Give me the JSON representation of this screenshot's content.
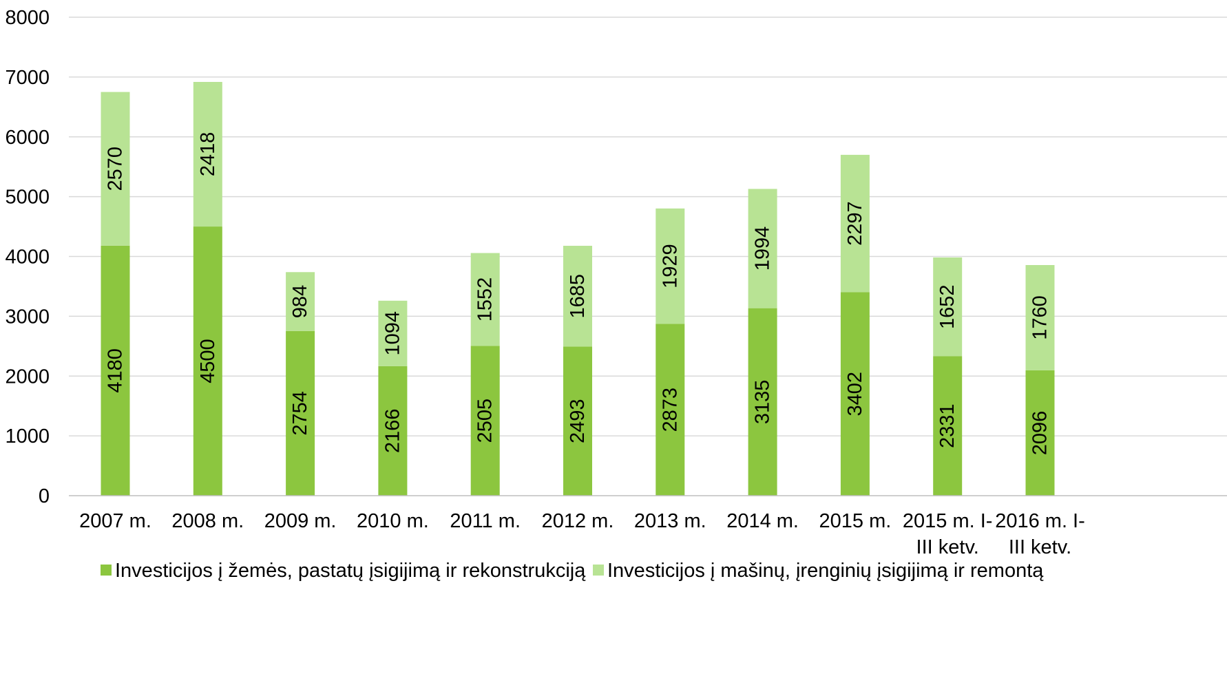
{
  "chart_data": {
    "type": "bar",
    "stacked": true,
    "categories": [
      [
        "2007 m."
      ],
      [
        "2008 m."
      ],
      [
        "2009 m."
      ],
      [
        "2010 m."
      ],
      [
        "2011 m."
      ],
      [
        "2012 m."
      ],
      [
        "2013 m."
      ],
      [
        "2014 m."
      ],
      [
        "2015 m."
      ],
      [
        "2015 m. I-",
        "III ketv."
      ],
      [
        "2016 m. I-",
        "III ketv."
      ]
    ],
    "series": [
      {
        "name": "Investicijos į žemės, pastatų įsigijimą ir rekonstrukciją",
        "color": "#8cc63f",
        "values": [
          4180,
          4500,
          2754,
          2166,
          2505,
          2493,
          2873,
          3135,
          3402,
          2331,
          2096
        ]
      },
      {
        "name": "Investicijos į mašinų, įrenginių įsigijimą ir remontą",
        "color": "#b8e394",
        "values": [
          2570,
          2418,
          984,
          1094,
          1552,
          1685,
          1929,
          1994,
          2297,
          1652,
          1760
        ]
      }
    ],
    "ylim": [
      0,
      8000
    ],
    "yticks": [
      0,
      1000,
      2000,
      3000,
      4000,
      5000,
      6000,
      7000,
      8000
    ],
    "grid": true,
    "gridColor": "#d9d9d9",
    "axisColor": "#bfbfbf",
    "legend": "bottom",
    "data_labels": "vertical, inside bars",
    "title": "",
    "xlabel": "",
    "ylabel": ""
  }
}
